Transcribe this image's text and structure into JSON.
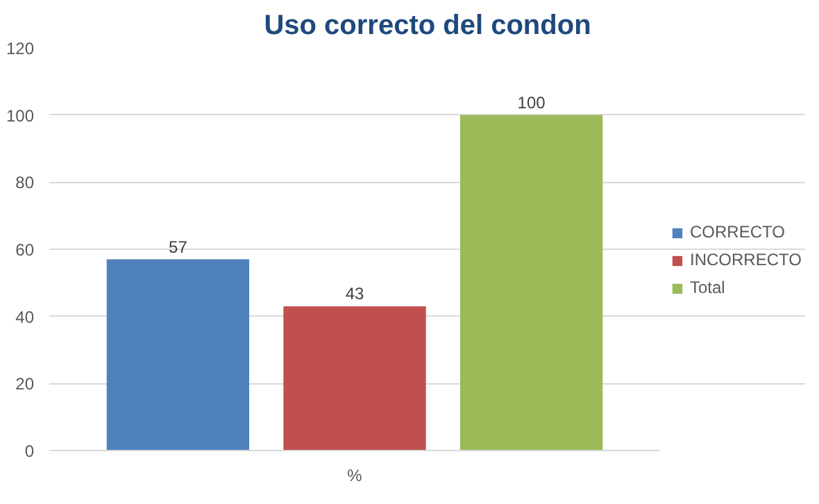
{
  "chart_data": {
    "type": "bar",
    "title": "Uso correcto del condon",
    "categories": [
      "%"
    ],
    "series": [
      {
        "name": "CORRECTO",
        "color": "#4f81bd",
        "values": [
          57
        ]
      },
      {
        "name": "INCORRECTO",
        "color": "#c0504d",
        "values": [
          43
        ]
      },
      {
        "name": "Total",
        "color": "#9bbb59",
        "values": [
          100
        ]
      }
    ],
    "ylim": [
      0,
      120
    ],
    "yticks": [
      0,
      20,
      40,
      60,
      80,
      100,
      120
    ],
    "grid": "y",
    "legend": "right",
    "data_labels": true
  }
}
